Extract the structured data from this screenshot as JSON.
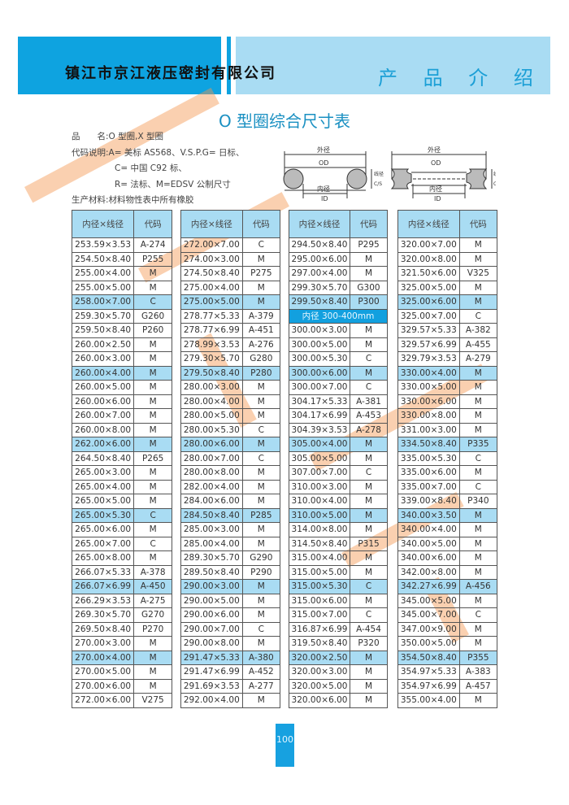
{
  "header": {
    "company": "镇江市京江液压密封有限公司",
    "section": "产 品 介 绍"
  },
  "title": "O 型圈综合尺寸表",
  "spec": {
    "line1": "品　　名:O 型圈,X 型圈",
    "line2": "代码说明:A= 美标 AS568、V.S.P.G= 日标、",
    "line3": "C= 中国 C92 标、",
    "line4": "R= 法标、M=EDSV 公制尺寸",
    "line5": "生产材料:材料物性表中所有橡胶"
  },
  "diagram": {
    "od_cn": "外径",
    "od": "OD",
    "id_cn": "内径",
    "id": "ID",
    "cs_cn": "线径",
    "cs": "C/S"
  },
  "table_headers": {
    "size": "内径×线径",
    "code": "代码"
  },
  "highlight_color": "#a9dcf3",
  "separator_color": "#12a0df",
  "tables": [
    [
      [
        "253.59×3.53",
        "A-274"
      ],
      [
        "254.50×8.40",
        "P255"
      ],
      [
        "255.00×4.00",
        "M"
      ],
      [
        "255.00×5.00",
        "M"
      ],
      [
        "258.00×7.00",
        "C"
      ],
      [
        "259.30×5.70",
        "G260"
      ],
      [
        "259.50×8.40",
        "P260"
      ],
      [
        "260.00×2.50",
        "M"
      ],
      [
        "260.00×3.00",
        "M"
      ],
      [
        "260.00×4.00",
        "M"
      ],
      [
        "260.00×5.00",
        "M"
      ],
      [
        "260.00×6.00",
        "M"
      ],
      [
        "260.00×7.00",
        "M"
      ],
      [
        "260.00×8.00",
        "M"
      ],
      [
        "262.00×6.00",
        "M"
      ],
      [
        "264.50×8.40",
        "P265"
      ],
      [
        "265.00×3.00",
        "M"
      ],
      [
        "265.00×4.00",
        "M"
      ],
      [
        "265.00×5.00",
        "M"
      ],
      [
        "265.00×5.30",
        "C"
      ],
      [
        "265.00×6.00",
        "M"
      ],
      [
        "265.00×7.00",
        "C"
      ],
      [
        "265.00×8.00",
        "M"
      ],
      [
        "266.07×5.33",
        "A-378"
      ],
      [
        "266.07×6.99",
        "A-450"
      ],
      [
        "266.29×3.53",
        "A-275"
      ],
      [
        "269.30×5.70",
        "G270"
      ],
      [
        "269.50×8.40",
        "P270"
      ],
      [
        "270.00×3.00",
        "M"
      ],
      [
        "270.00×4.00",
        "M"
      ],
      [
        "270.00×5.00",
        "M"
      ],
      [
        "270.00×6.00",
        "M"
      ],
      [
        "272.00×6.00",
        "V275"
      ]
    ],
    [
      [
        "272.00×7.00",
        "C"
      ],
      [
        "274.00×3.00",
        "M"
      ],
      [
        "274.50×8.40",
        "P275"
      ],
      [
        "275.00×4.00",
        "M"
      ],
      [
        "275.00×5.00",
        "M"
      ],
      [
        "278.77×5.33",
        "A-379"
      ],
      [
        "278.77×6.99",
        "A-451"
      ],
      [
        "278.99×3.53",
        "A-276"
      ],
      [
        "279.30×5.70",
        "G280"
      ],
      [
        "279.50×8.40",
        "P280"
      ],
      [
        "280.00×3.00",
        "M"
      ],
      [
        "280.00×4.00",
        "M"
      ],
      [
        "280.00×5.00",
        "M"
      ],
      [
        "280.00×5.30",
        "C"
      ],
      [
        "280.00×6.00",
        "M"
      ],
      [
        "280.00×7.00",
        "C"
      ],
      [
        "280.00×8.00",
        "M"
      ],
      [
        "282.00×4.00",
        "M"
      ],
      [
        "284.00×6.00",
        "M"
      ],
      [
        "284.50×8.40",
        "P285"
      ],
      [
        "285.00×3.00",
        "M"
      ],
      [
        "285.00×4.00",
        "M"
      ],
      [
        "289.30×5.70",
        "G290"
      ],
      [
        "289.50×8.40",
        "P290"
      ],
      [
        "290.00×3.00",
        "M"
      ],
      [
        "290.00×5.00",
        "M"
      ],
      [
        "290.00×6.00",
        "M"
      ],
      [
        "290.00×7.00",
        "C"
      ],
      [
        "290.00×8.00",
        "M"
      ],
      [
        "291.47×5.33",
        "A-380"
      ],
      [
        "291.47×6.99",
        "A-452"
      ],
      [
        "291.69×3.53",
        "A-277"
      ],
      [
        "292.00×4.00",
        "M"
      ]
    ],
    [
      [
        "294.50×8.40",
        "P295"
      ],
      [
        "295.00×6.00",
        "M"
      ],
      [
        "297.00×4.00",
        "M"
      ],
      [
        "299.30×5.70",
        "G300"
      ],
      [
        "299.50×8.40",
        "P300"
      ],
      [
        "内径 300-400mm"
      ],
      [
        "300.00×3.00",
        "M"
      ],
      [
        "300.00×5.00",
        "M"
      ],
      [
        "300.00×5.30",
        "C"
      ],
      [
        "300.00×6.00",
        "M"
      ],
      [
        "300.00×7.00",
        "C"
      ],
      [
        "304.17×5.33",
        "A-381"
      ],
      [
        "304.17×6.99",
        "A-453"
      ],
      [
        "304.39×3.53",
        "A-278"
      ],
      [
        "305.00×4.00",
        "M"
      ],
      [
        "305.00×5.00",
        "M"
      ],
      [
        "307.00×7.00",
        "C"
      ],
      [
        "310.00×3.00",
        "M"
      ],
      [
        "310.00×4.00",
        "M"
      ],
      [
        "310.00×5.00",
        "M"
      ],
      [
        "314.00×8.00",
        "M"
      ],
      [
        "314.50×8.40",
        "P315"
      ],
      [
        "315.00×4.00",
        "M"
      ],
      [
        "315.00×5.00",
        "M"
      ],
      [
        "315.00×5.30",
        "C"
      ],
      [
        "315.00×6.00",
        "M"
      ],
      [
        "315.00×7.00",
        "C"
      ],
      [
        "316.87×6.99",
        "A-454"
      ],
      [
        "319.50×8.40",
        "P320"
      ],
      [
        "320.00×2.50",
        "M"
      ],
      [
        "320.00×3.00",
        "M"
      ],
      [
        "320.00×5.00",
        "M"
      ],
      [
        "320.00×6.00",
        "M"
      ]
    ],
    [
      [
        "320.00×7.00",
        "M"
      ],
      [
        "320.00×8.00",
        "M"
      ],
      [
        "321.50×6.00",
        "V325"
      ],
      [
        "325.00×5.00",
        "M"
      ],
      [
        "325.00×6.00",
        "M"
      ],
      [
        "325.00×7.00",
        "C"
      ],
      [
        "329.57×5.33",
        "A-382"
      ],
      [
        "329.57×6.99",
        "A-455"
      ],
      [
        "329.79×3.53",
        "A-279"
      ],
      [
        "330.00×4.00",
        "M"
      ],
      [
        "330.00×5.00",
        "M"
      ],
      [
        "330.00×6.00",
        "M"
      ],
      [
        "330.00×8.00",
        "M"
      ],
      [
        "331.00×3.00",
        "M"
      ],
      [
        "334.50×8.40",
        "P335"
      ],
      [
        "335.00×5.30",
        "C"
      ],
      [
        "335.00×6.00",
        "M"
      ],
      [
        "335.00×7.00",
        "C"
      ],
      [
        "339.00×8.40",
        "P340"
      ],
      [
        "340.00×3.50",
        "M"
      ],
      [
        "340.00×4.00",
        "M"
      ],
      [
        "340.00×5.00",
        "M"
      ],
      [
        "340.00×6.00",
        "M"
      ],
      [
        "342.00×8.00",
        "M"
      ],
      [
        "342.27×6.99",
        "A-456"
      ],
      [
        "345.00×5.00",
        "M"
      ],
      [
        "345.00×7.00",
        "C"
      ],
      [
        "347.00×9.00",
        "M"
      ],
      [
        "350.00×5.00",
        "M"
      ],
      [
        "354.50×8.40",
        "P355"
      ],
      [
        "354.97×5.33",
        "A-383"
      ],
      [
        "354.97×6.99",
        "A-457"
      ],
      [
        "355.00×4.00",
        "M"
      ]
    ]
  ],
  "page_number": "100"
}
